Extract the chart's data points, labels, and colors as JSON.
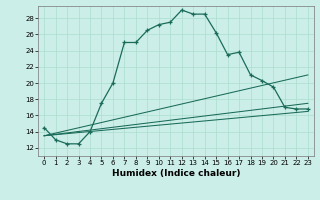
{
  "xlabel": "Humidex (Indice chaleur)",
  "bg_color": "#cceee8",
  "line_color": "#1a6b5a",
  "grid_color": "#aaddcc",
  "xlim": [
    -0.5,
    23.5
  ],
  "ylim": [
    11.0,
    29.5
  ],
  "yticks": [
    12,
    14,
    16,
    18,
    20,
    22,
    24,
    26,
    28
  ],
  "xticks": [
    0,
    1,
    2,
    3,
    4,
    5,
    6,
    7,
    8,
    9,
    10,
    11,
    12,
    13,
    14,
    15,
    16,
    17,
    18,
    19,
    20,
    21,
    22,
    23
  ],
  "main_x": [
    0,
    1,
    2,
    3,
    4,
    5,
    6,
    7,
    8,
    9,
    10,
    11,
    12,
    13,
    14,
    15,
    16,
    17,
    18,
    19,
    20,
    21,
    22,
    23
  ],
  "main_y": [
    14.5,
    13.0,
    12.5,
    12.5,
    14.0,
    17.5,
    20.0,
    25.0,
    25.0,
    26.5,
    27.2,
    27.5,
    29.0,
    28.5,
    28.5,
    26.2,
    23.5,
    23.8,
    21.0,
    20.3,
    19.5,
    17.0,
    16.8,
    16.8
  ],
  "ref_lines": [
    {
      "x": [
        0,
        23
      ],
      "y": [
        13.5,
        16.5
      ]
    },
    {
      "x": [
        0,
        23
      ],
      "y": [
        13.5,
        17.5
      ]
    },
    {
      "x": [
        0,
        23
      ],
      "y": [
        13.5,
        21.0
      ]
    }
  ],
  "xlabel_fontsize": 6.5,
  "tick_fontsize": 5.0
}
